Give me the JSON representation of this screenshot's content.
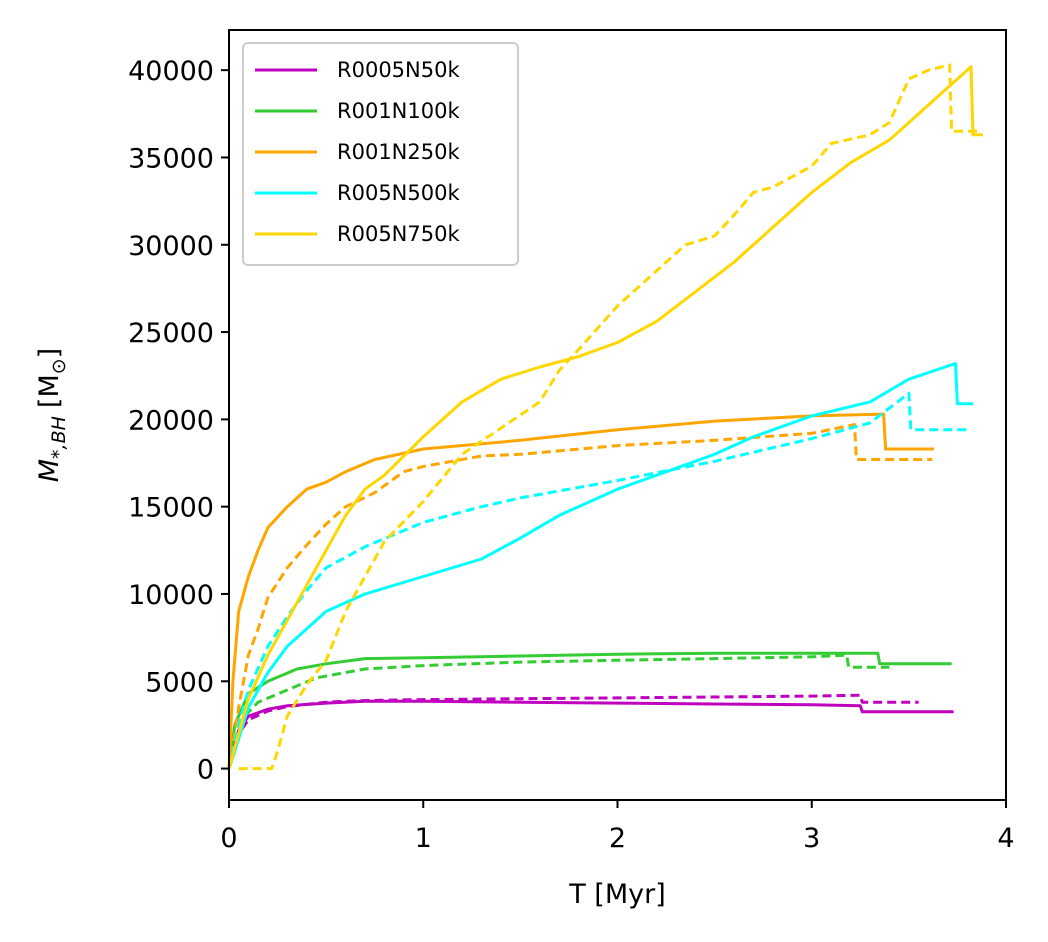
{
  "chart_data": {
    "type": "line",
    "xlabel": "T [Myr]",
    "ylabel_main": "M",
    "ylabel_sub": "*,BH",
    "ylabel_unit": "[M",
    "ylabel_unit_sub": "⊙",
    "ylabel_unit_close": "]",
    "xlim": [
      0,
      4
    ],
    "ylim": [
      -1800,
      42300
    ],
    "xticks": [
      0,
      1,
      2,
      3,
      4
    ],
    "xtick_labels": [
      "0",
      "1",
      "2",
      "3",
      "4"
    ],
    "yticks": [
      0,
      5000,
      10000,
      15000,
      20000,
      25000,
      30000,
      35000,
      40000
    ],
    "ytick_labels": [
      "0",
      "5000",
      "10000",
      "15000",
      "20000",
      "25000",
      "30000",
      "35000",
      "40000"
    ],
    "grid": false,
    "legend_position": "top-left",
    "series": [
      {
        "name": "R0005N50k",
        "color": "#bf00bf",
        "dashed": [
          [
            0,
            0
          ],
          [
            0.05,
            2000
          ],
          [
            0.1,
            2800
          ],
          [
            0.2,
            3300
          ],
          [
            0.3,
            3550
          ],
          [
            0.5,
            3800
          ],
          [
            0.7,
            3900
          ],
          [
            1.0,
            3950
          ],
          [
            1.5,
            4000
          ],
          [
            2.0,
            4050
          ],
          [
            2.5,
            4100
          ],
          [
            3.0,
            4150
          ],
          [
            3.25,
            4200
          ],
          [
            3.26,
            3800
          ],
          [
            3.55,
            3800
          ]
        ],
        "solid": [
          [
            0,
            0
          ],
          [
            0.05,
            2200
          ],
          [
            0.1,
            3000
          ],
          [
            0.2,
            3400
          ],
          [
            0.3,
            3600
          ],
          [
            0.5,
            3750
          ],
          [
            0.7,
            3850
          ],
          [
            1.0,
            3850
          ],
          [
            1.5,
            3800
          ],
          [
            2.0,
            3750
          ],
          [
            2.5,
            3700
          ],
          [
            3.0,
            3650
          ],
          [
            3.25,
            3600
          ],
          [
            3.26,
            3250
          ],
          [
            3.73,
            3250
          ]
        ]
      },
      {
        "name": "R001N100k",
        "color": "#33cc33",
        "dashed": [
          [
            0,
            0
          ],
          [
            0.03,
            2000
          ],
          [
            0.08,
            3000
          ],
          [
            0.15,
            3800
          ],
          [
            0.3,
            4500
          ],
          [
            0.45,
            5200
          ],
          [
            0.7,
            5700
          ],
          [
            1.0,
            5900
          ],
          [
            1.5,
            6100
          ],
          [
            2.0,
            6200
          ],
          [
            2.5,
            6300
          ],
          [
            3.0,
            6400
          ],
          [
            3.18,
            6500
          ],
          [
            3.19,
            5800
          ],
          [
            3.4,
            5800
          ]
        ],
        "solid": [
          [
            0,
            0
          ],
          [
            0.03,
            2500
          ],
          [
            0.1,
            4300
          ],
          [
            0.2,
            5000
          ],
          [
            0.35,
            5700
          ],
          [
            0.5,
            6000
          ],
          [
            0.7,
            6300
          ],
          [
            1.0,
            6350
          ],
          [
            1.5,
            6450
          ],
          [
            2.0,
            6550
          ],
          [
            2.5,
            6600
          ],
          [
            3.0,
            6600
          ],
          [
            3.34,
            6600
          ],
          [
            3.35,
            6000
          ],
          [
            3.72,
            6000
          ]
        ]
      },
      {
        "name": "R001N250k",
        "color": "#ffa500",
        "dashed": [
          [
            0,
            0
          ],
          [
            0.05,
            3500
          ],
          [
            0.1,
            6500
          ],
          [
            0.15,
            8000
          ],
          [
            0.2,
            9800
          ],
          [
            0.3,
            11500
          ],
          [
            0.4,
            12800
          ],
          [
            0.5,
            14000
          ],
          [
            0.6,
            15000
          ],
          [
            0.75,
            15800
          ],
          [
            0.9,
            17000
          ],
          [
            1.0,
            17300
          ],
          [
            1.3,
            17900
          ],
          [
            1.5,
            18000
          ],
          [
            2.0,
            18500
          ],
          [
            2.5,
            18800
          ],
          [
            3.0,
            19200
          ],
          [
            3.22,
            19700
          ],
          [
            3.23,
            17700
          ],
          [
            3.62,
            17700
          ]
        ],
        "solid": [
          [
            0,
            0
          ],
          [
            0.02,
            5000
          ],
          [
            0.05,
            9000
          ],
          [
            0.1,
            11000
          ],
          [
            0.15,
            12500
          ],
          [
            0.2,
            13800
          ],
          [
            0.3,
            15000
          ],
          [
            0.4,
            16000
          ],
          [
            0.5,
            16400
          ],
          [
            0.6,
            17000
          ],
          [
            0.75,
            17700
          ],
          [
            1.0,
            18300
          ],
          [
            1.5,
            18800
          ],
          [
            2.0,
            19400
          ],
          [
            2.5,
            19900
          ],
          [
            3.0,
            20200
          ],
          [
            3.37,
            20300
          ],
          [
            3.38,
            18300
          ],
          [
            3.63,
            18300
          ]
        ]
      },
      {
        "name": "R005N500k",
        "color": "#00ffff",
        "dashed": [
          [
            0,
            0
          ],
          [
            0.05,
            2500
          ],
          [
            0.1,
            4500
          ],
          [
            0.2,
            7000
          ],
          [
            0.3,
            8700
          ],
          [
            0.4,
            10200
          ],
          [
            0.5,
            11500
          ],
          [
            0.7,
            12700
          ],
          [
            1.0,
            14100
          ],
          [
            1.3,
            15000
          ],
          [
            1.5,
            15500
          ],
          [
            2.0,
            16500
          ],
          [
            2.5,
            17600
          ],
          [
            3.0,
            18900
          ],
          [
            3.3,
            19800
          ],
          [
            3.5,
            21500
          ],
          [
            3.51,
            19400
          ],
          [
            3.8,
            19400
          ]
        ],
        "solid": [
          [
            0,
            0
          ],
          [
            0.03,
            1000
          ],
          [
            0.1,
            3500
          ],
          [
            0.2,
            5500
          ],
          [
            0.3,
            7000
          ],
          [
            0.4,
            8000
          ],
          [
            0.5,
            9000
          ],
          [
            0.7,
            10000
          ],
          [
            1.0,
            11000
          ],
          [
            1.3,
            12000
          ],
          [
            1.5,
            13200
          ],
          [
            1.7,
            14500
          ],
          [
            2.0,
            16000
          ],
          [
            2.3,
            17200
          ],
          [
            2.5,
            18000
          ],
          [
            2.7,
            19000
          ],
          [
            3.0,
            20200
          ],
          [
            3.3,
            21000
          ],
          [
            3.5,
            22300
          ],
          [
            3.74,
            23200
          ],
          [
            3.75,
            20900
          ],
          [
            3.83,
            20900
          ]
        ]
      },
      {
        "name": "R005N750k",
        "color": "#ffd700",
        "dashed": [
          [
            0.05,
            0
          ],
          [
            0.22,
            0
          ],
          [
            0.25,
            1000
          ],
          [
            0.3,
            3000
          ],
          [
            0.4,
            4800
          ],
          [
            0.5,
            6200
          ],
          [
            0.6,
            9000
          ],
          [
            0.7,
            11000
          ],
          [
            0.8,
            13000
          ],
          [
            1.0,
            15300
          ],
          [
            1.2,
            18000
          ],
          [
            1.4,
            19500
          ],
          [
            1.6,
            21000
          ],
          [
            1.7,
            22800
          ],
          [
            1.8,
            24000
          ],
          [
            2.0,
            26500
          ],
          [
            2.2,
            28500
          ],
          [
            2.35,
            30000
          ],
          [
            2.5,
            30500
          ],
          [
            2.6,
            31700
          ],
          [
            2.7,
            33000
          ],
          [
            2.8,
            33300
          ],
          [
            3.0,
            34500
          ],
          [
            3.1,
            35800
          ],
          [
            3.3,
            36300
          ],
          [
            3.4,
            37000
          ],
          [
            3.5,
            39500
          ],
          [
            3.6,
            40000
          ],
          [
            3.71,
            40300
          ],
          [
            3.72,
            36500
          ],
          [
            3.87,
            36500
          ]
        ],
        "solid": [
          [
            0,
            0
          ],
          [
            0.05,
            2000
          ],
          [
            0.1,
            4000
          ],
          [
            0.2,
            6500
          ],
          [
            0.3,
            8500
          ],
          [
            0.4,
            10500
          ],
          [
            0.5,
            12500
          ],
          [
            0.6,
            14500
          ],
          [
            0.7,
            16000
          ],
          [
            0.8,
            16800
          ],
          [
            1.0,
            19000
          ],
          [
            1.2,
            21000
          ],
          [
            1.4,
            22300
          ],
          [
            1.6,
            23000
          ],
          [
            1.8,
            23600
          ],
          [
            2.0,
            24400
          ],
          [
            2.2,
            25600
          ],
          [
            2.4,
            27300
          ],
          [
            2.6,
            29000
          ],
          [
            2.8,
            31000
          ],
          [
            3.0,
            33000
          ],
          [
            3.2,
            34700
          ],
          [
            3.4,
            36000
          ],
          [
            3.6,
            38000
          ],
          [
            3.82,
            40200
          ],
          [
            3.83,
            36300
          ],
          [
            3.88,
            36300
          ]
        ]
      }
    ]
  }
}
